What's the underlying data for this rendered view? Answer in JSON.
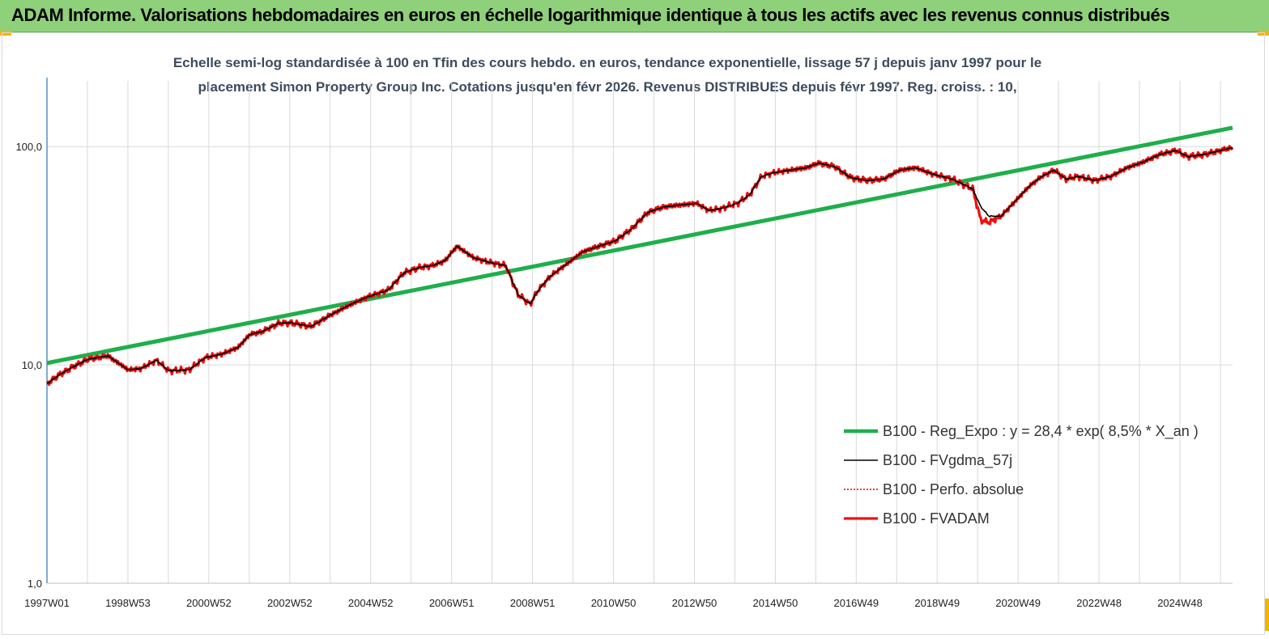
{
  "header": {
    "title": "ADAM Informe. Valorisations hebdomadaires en euros en échelle logarithmique identique à tous les actifs avec les revenus connus distribués"
  },
  "colors": {
    "header_bg": "#8fd07a",
    "corner_accent": "#f5b400",
    "regression": "#1fae4b",
    "fvgdma": "#000000",
    "perfo": "#e00000",
    "fvadam": "#ee1111",
    "grid": "#d9d9d9",
    "axis": "#2e75b6"
  },
  "chart_data": {
    "type": "line",
    "title_line1": "Echelle semi-log standardisée à 100 en Tfin des cours hebdo. en euros, tendance exponentielle, lissage 57 j depuis janv 1997 pour le",
    "title_line2": "placement Simon Property Group Inc.  Cotations jusqu'en févr 2026. Revenus DISTRIBUES depuis févr 1997. Reg. croiss. : 10,",
    "yscale": "log",
    "ylim": [
      1,
      200
    ],
    "y_ticks": [
      1,
      10,
      100
    ],
    "y_tick_labels": [
      "1,0",
      "10,0",
      "100,0"
    ],
    "xlim": [
      1997.0,
      2026.2
    ],
    "x_tick_labels": [
      "1997W01",
      "1998W53",
      "2000W52",
      "2002W52",
      "2004W52",
      "2006W51",
      "2008W51",
      "2010W50",
      "2012W50",
      "2014W50",
      "2016W49",
      "2018W49",
      "2020W49",
      "2022W48",
      "2024W48"
    ],
    "grid": true,
    "legend_position": "right",
    "series": [
      {
        "name": "B100 - Reg_Expo : y = 28,4 *  exp( 8,5% *  X_an )",
        "style": "thick-green",
        "x": [
          1997.0,
          2026.2
        ],
        "y": [
          10.2,
          122
        ]
      },
      {
        "name": "B100 - FVgdma_57j",
        "style": "thin-black",
        "x": [
          1997.0,
          1997.3,
          1997.6,
          1998.0,
          1998.5,
          1999.0,
          1999.3,
          1999.7,
          2000.0,
          2000.5,
          2000.9,
          2001.3,
          2001.7,
          2002.0,
          2002.3,
          2002.7,
          2003.0,
          2003.5,
          2004.0,
          2004.5,
          2004.9,
          2005.4,
          2005.8,
          2006.2,
          2006.5,
          2006.8,
          2007.1,
          2007.5,
          2007.9,
          2008.3,
          2008.6,
          2008.9,
          2009.1,
          2009.4,
          2009.8,
          2010.2,
          2010.6,
          2011.0,
          2011.4,
          2011.8,
          2012.2,
          2012.6,
          2013.0,
          2013.3,
          2013.6,
          2014.0,
          2014.3,
          2014.6,
          2014.9,
          2015.3,
          2015.7,
          2016.0,
          2016.4,
          2016.8,
          2017.2,
          2017.6,
          2018.0,
          2018.4,
          2018.8,
          2019.3,
          2019.8,
          2020.0,
          2020.2,
          2020.5,
          2020.8,
          2021.2,
          2021.5,
          2021.8,
          2022.1,
          2022.4,
          2022.8,
          2023.2,
          2023.6,
          2024.0,
          2024.4,
          2024.8,
          2025.1,
          2025.5,
          2025.9,
          2026.2
        ],
        "y": [
          8.2,
          9.0,
          9.7,
          10.6,
          11.0,
          9.5,
          9.6,
          10.5,
          9.4,
          9.5,
          10.8,
          11.2,
          12.0,
          13.8,
          14.2,
          15.5,
          15.6,
          15.0,
          17.0,
          19.0,
          20.5,
          22.0,
          26.5,
          28.0,
          28.5,
          30.0,
          35.0,
          31.0,
          29.5,
          28.5,
          21.0,
          19.0,
          22.0,
          25.5,
          29.0,
          33.0,
          35.0,
          37.0,
          42.0,
          50.0,
          53.0,
          54.0,
          55.0,
          51.0,
          52.0,
          55.0,
          60.0,
          73.0,
          76.0,
          78.0,
          80.0,
          84.0,
          81.0,
          72.0,
          70.0,
          71.0,
          78.0,
          80.0,
          75.0,
          71.0,
          64.0,
          53.0,
          48.0,
          48.0,
          55.0,
          66.0,
          73.0,
          78.0,
          71.0,
          73.0,
          70.0,
          73.0,
          80.0,
          85.0,
          92.0,
          96.0,
          90.0,
          92.0,
          96.0,
          99.0
        ]
      },
      {
        "name": "B100 - Perfo. absolue",
        "style": "dotted-red",
        "x": [],
        "y": []
      },
      {
        "name": "B100 - FVADAM",
        "style": "thick-red",
        "x": [
          1997.0,
          1997.3,
          1997.6,
          1998.0,
          1998.5,
          1999.0,
          1999.3,
          1999.7,
          2000.0,
          2000.5,
          2000.9,
          2001.3,
          2001.7,
          2002.0,
          2002.3,
          2002.7,
          2003.0,
          2003.5,
          2004.0,
          2004.5,
          2004.9,
          2005.4,
          2005.8,
          2006.2,
          2006.5,
          2006.8,
          2007.1,
          2007.5,
          2007.9,
          2008.3,
          2008.6,
          2008.9,
          2009.1,
          2009.4,
          2009.8,
          2010.2,
          2010.6,
          2011.0,
          2011.4,
          2011.8,
          2012.2,
          2012.6,
          2013.0,
          2013.3,
          2013.6,
          2014.0,
          2014.3,
          2014.6,
          2014.9,
          2015.3,
          2015.7,
          2016.0,
          2016.4,
          2016.8,
          2017.2,
          2017.6,
          2018.0,
          2018.4,
          2018.8,
          2019.3,
          2019.8,
          2020.0,
          2020.2,
          2020.5,
          2020.8,
          2021.2,
          2021.5,
          2021.8,
          2022.1,
          2022.4,
          2022.8,
          2023.2,
          2023.6,
          2024.0,
          2024.4,
          2024.8,
          2025.1,
          2025.5,
          2025.9,
          2026.2
        ],
        "y": [
          8.2,
          9.0,
          9.7,
          10.6,
          11.0,
          9.5,
          9.6,
          10.5,
          9.4,
          9.5,
          10.8,
          11.2,
          12.0,
          13.8,
          14.2,
          15.5,
          15.6,
          15.0,
          17.0,
          19.0,
          20.5,
          22.0,
          26.5,
          28.0,
          28.5,
          30.0,
          35.0,
          31.0,
          29.5,
          28.5,
          21.0,
          19.0,
          22.0,
          25.5,
          29.0,
          33.0,
          35.0,
          37.0,
          42.0,
          50.0,
          53.0,
          54.0,
          55.0,
          51.0,
          52.0,
          55.0,
          60.0,
          73.0,
          76.0,
          78.0,
          80.0,
          84.0,
          81.0,
          72.0,
          70.0,
          71.0,
          78.0,
          80.0,
          75.0,
          71.0,
          64.0,
          46.0,
          45.0,
          48.0,
          55.0,
          66.0,
          73.0,
          78.0,
          71.0,
          73.0,
          70.0,
          73.0,
          80.0,
          85.0,
          92.0,
          96.0,
          90.0,
          92.0,
          96.0,
          99.0
        ]
      }
    ]
  }
}
